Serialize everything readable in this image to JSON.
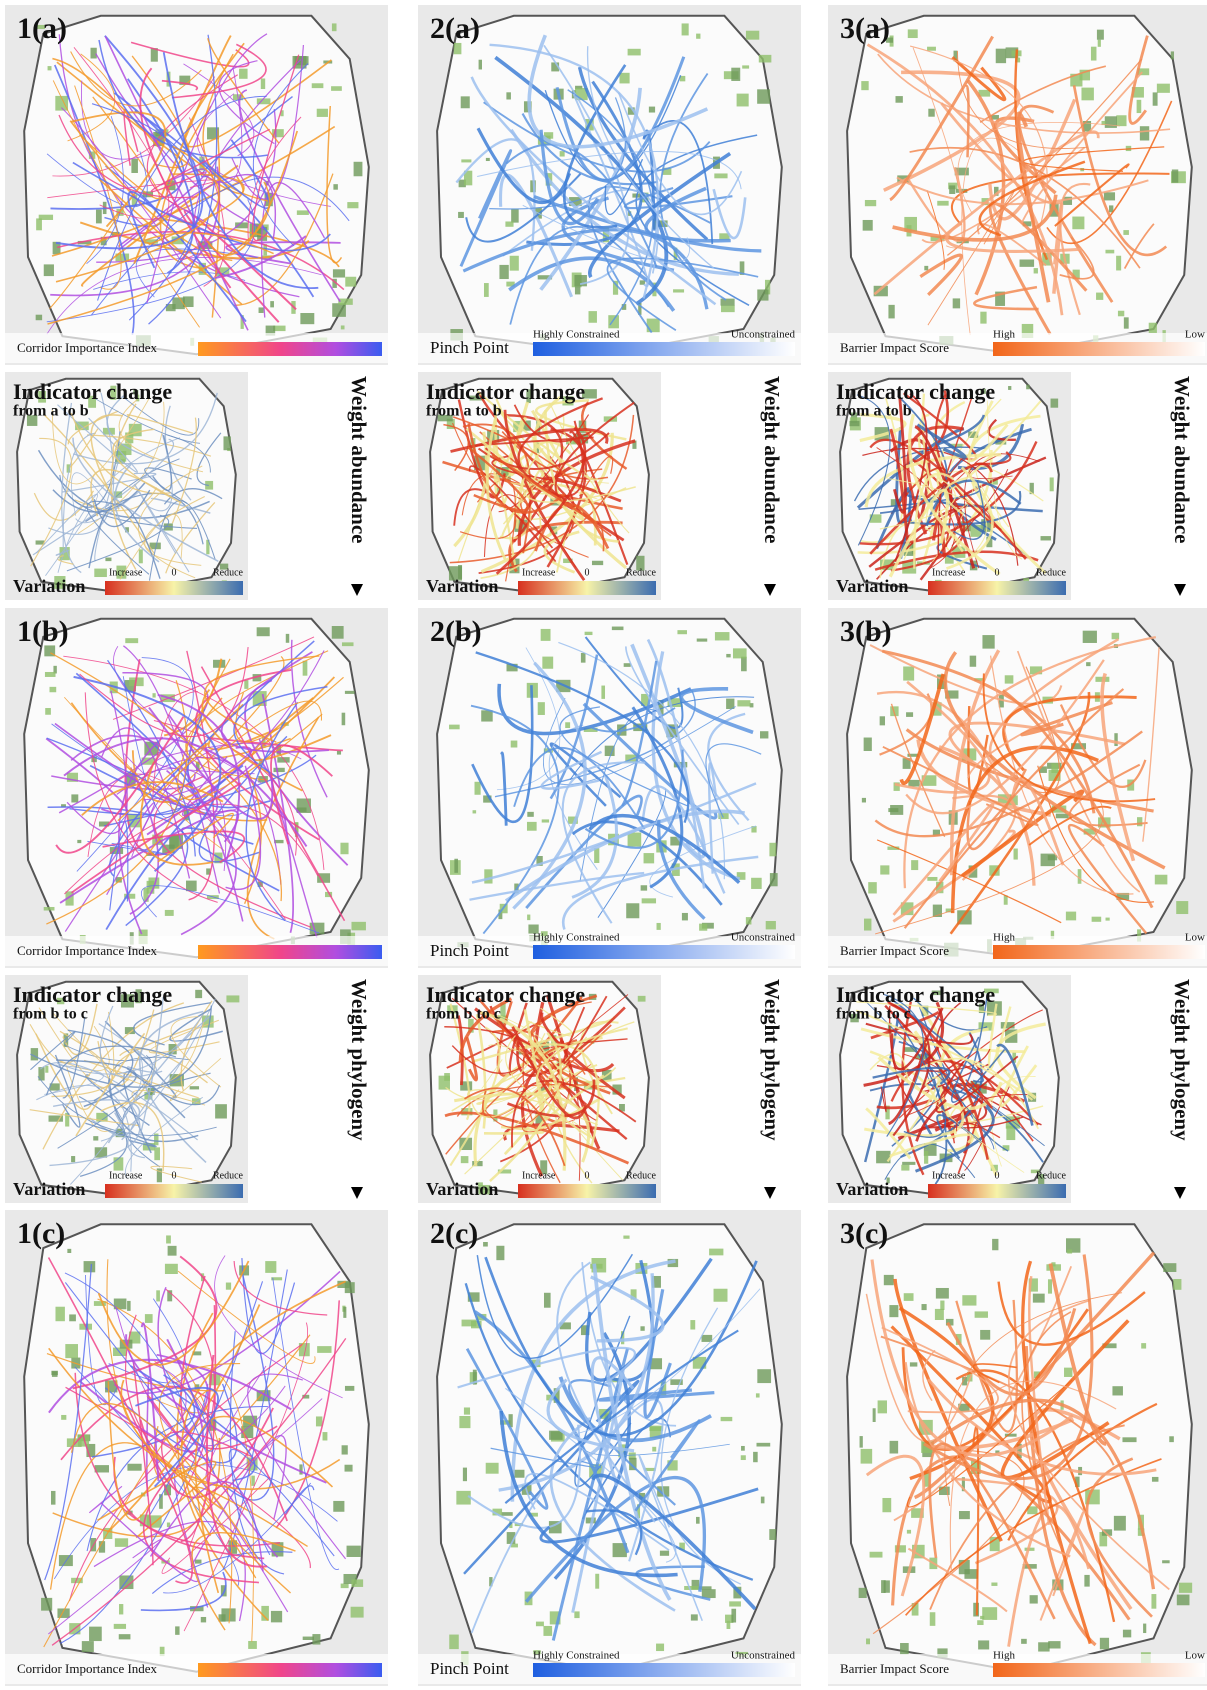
{
  "maps": [
    {
      "label": "1(a)",
      "legend": {
        "title": "Corridor Importance Index"
      }
    },
    {
      "label": "2(a)",
      "legend": {
        "title": "Pinch Point",
        "left": "Highly Constrained",
        "right": "Unconstrained"
      }
    },
    {
      "label": "3(a)",
      "legend": {
        "title": "Barrier Impact Score",
        "left": "High",
        "right": "Low"
      }
    },
    {
      "label": "1(b)",
      "legend": {
        "title": "Corridor Importance Index"
      }
    },
    {
      "label": "2(b)",
      "legend": {
        "title": "Pinch Point",
        "left": "Highly Constrained",
        "right": "Unconstrained"
      }
    },
    {
      "label": "3(b)",
      "legend": {
        "title": "Barrier Impact Score",
        "left": "High",
        "right": "Low"
      }
    },
    {
      "label": "1(c)",
      "legend": {
        "title": "Corridor Importance Index"
      }
    },
    {
      "label": "2(c)",
      "legend": {
        "title": "Pinch Point",
        "left": "Highly Constrained",
        "right": "Unconstrained"
      }
    },
    {
      "label": "3(c)",
      "legend": {
        "title": "Barrier Impact Score",
        "left": "High",
        "right": "Low"
      }
    }
  ],
  "changes": [
    {
      "title": "Indicator change",
      "subtitle": "from a to b",
      "legend": {
        "title": "Variation",
        "left": "Increase",
        "mid": "0",
        "right": "Reduce"
      },
      "arrow": "Weight abundance"
    },
    {
      "title": "Indicator change",
      "subtitle": "from a to b",
      "legend": {
        "title": "Variation",
        "left": "Increase",
        "mid": "0",
        "right": "Reduce"
      },
      "arrow": "Weight abundance"
    },
    {
      "title": "Indicator change",
      "subtitle": "from a to b",
      "legend": {
        "title": "Variation",
        "left": "Increase",
        "mid": "0",
        "right": "Reduce"
      },
      "arrow": "Weight abundance"
    },
    {
      "title": "Indicator change",
      "subtitle": "from b to c",
      "legend": {
        "title": "Variation",
        "left": "Increase",
        "mid": "0",
        "right": "Reduce"
      },
      "arrow": "Weight phylogeny"
    },
    {
      "title": "Indicator change",
      "subtitle": "from b to c",
      "legend": {
        "title": "Variation",
        "left": "Increase",
        "mid": "0",
        "right": "Reduce"
      },
      "arrow": "Weight phylogeny"
    },
    {
      "title": "Indicator change",
      "subtitle": "from b to c",
      "legend": {
        "title": "Variation",
        "left": "Increase",
        "mid": "0",
        "right": "Reduce"
      },
      "arrow": "Weight phylogeny"
    }
  ]
}
